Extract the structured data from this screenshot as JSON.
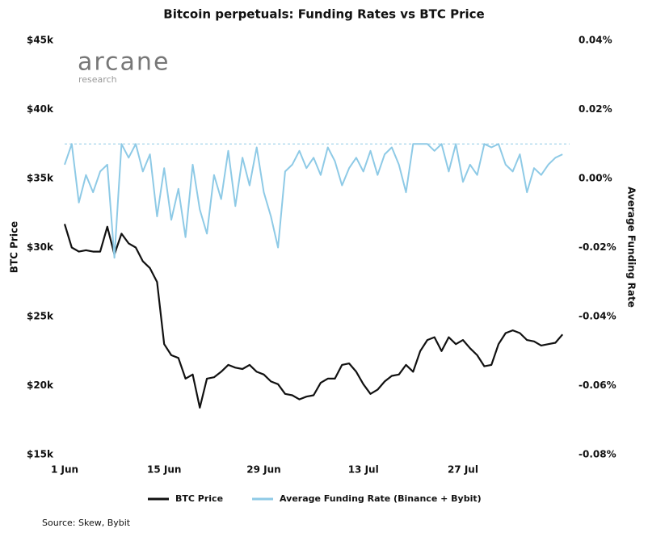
{
  "chart_data": {
    "type": "line",
    "title": "Bitcoin perpetuals: Funding Rates vs BTC Price",
    "logo": {
      "name": "arcane",
      "tagline": "research"
    },
    "source": "Source: Skew, Bybit",
    "ylabel": "BTC Price",
    "y2label": "Average Funding Rate",
    "x": [
      0,
      1,
      2,
      3,
      4,
      5,
      6,
      7,
      8,
      9,
      10,
      11,
      12,
      13,
      14,
      15,
      16,
      17,
      18,
      19,
      20,
      21,
      22,
      23,
      24,
      25,
      26,
      27,
      28,
      29,
      30,
      31,
      32,
      33,
      34,
      35,
      36,
      37,
      38,
      39,
      40,
      41,
      42,
      43,
      44,
      45,
      46,
      47,
      48,
      49,
      50,
      51,
      52,
      53,
      54,
      55,
      56,
      57,
      58,
      59,
      60,
      61,
      62,
      63,
      64,
      65,
      66,
      67,
      68,
      69,
      70
    ],
    "xlim": [
      0,
      71
    ],
    "xticks": [
      {
        "value": 0,
        "label": "1 Jun"
      },
      {
        "value": 14,
        "label": "15 Jun"
      },
      {
        "value": 28,
        "label": "29 Jun"
      },
      {
        "value": 42,
        "label": "13 Jul"
      },
      {
        "value": 56,
        "label": "27 Jul"
      }
    ],
    "ylim": [
      15000,
      45000
    ],
    "yticks": [
      {
        "value": 15000,
        "label": "$15k"
      },
      {
        "value": 20000,
        "label": "$20k"
      },
      {
        "value": 25000,
        "label": "$25k"
      },
      {
        "value": 30000,
        "label": "$30k"
      },
      {
        "value": 35000,
        "label": "$35k"
      },
      {
        "value": 40000,
        "label": "$40k"
      },
      {
        "value": 45000,
        "label": "$45k"
      }
    ],
    "y2lim": [
      -0.08,
      0.04
    ],
    "y2ticks": [
      {
        "value": -0.08,
        "label": "-0.08%"
      },
      {
        "value": -0.06,
        "label": "-0.06%"
      },
      {
        "value": -0.04,
        "label": "-0.04%"
      },
      {
        "value": -0.02,
        "label": "-0.02%"
      },
      {
        "value": 0,
        "label": "0.00%"
      },
      {
        "value": 0.02,
        "label": "0.02%"
      },
      {
        "value": 0.04,
        "label": "0.04%"
      }
    ],
    "hline": {
      "axis": "y2",
      "value": 0.01,
      "color": "#8ecae6"
    },
    "series": [
      {
        "name": "BTC Price",
        "color": "#111111",
        "axis": "y",
        "values": [
          31700,
          30000,
          29700,
          29800,
          29700,
          29700,
          31500,
          29500,
          31000,
          30300,
          30000,
          29000,
          28500,
          27500,
          23000,
          22200,
          22000,
          20500,
          20800,
          18400,
          20500,
          20600,
          21000,
          21500,
          21300,
          21200,
          21500,
          21000,
          20800,
          20300,
          20100,
          19400,
          19300,
          19000,
          19200,
          19300,
          20200,
          20500,
          20500,
          21500,
          21600,
          21000,
          20100,
          19400,
          19700,
          20300,
          20700,
          20800,
          21500,
          21000,
          22500,
          23300,
          23500,
          22500,
          23500,
          23000,
          23300,
          22700,
          22200,
          21400,
          21500,
          23000,
          23800,
          24000,
          23800,
          23300,
          23200,
          22900,
          23000,
          23100,
          23700
        ]
      },
      {
        "name": "Average Funding Rate (Binance + Bybit)",
        "color": "#8ecae6",
        "axis": "y2",
        "values": [
          0.004,
          0.01,
          -0.007,
          0.001,
          -0.004,
          0.002,
          0.004,
          -0.023,
          0.01,
          0.006,
          0.01,
          0.002,
          0.007,
          -0.011,
          0.003,
          -0.012,
          -0.003,
          -0.017,
          0.004,
          -0.009,
          -0.016,
          0.001,
          -0.006,
          0.008,
          -0.008,
          0.006,
          -0.002,
          0.009,
          -0.004,
          -0.011,
          -0.02,
          0.002,
          0.004,
          0.008,
          0.003,
          0.006,
          0.001,
          0.009,
          0.005,
          -0.002,
          0.003,
          0.006,
          0.002,
          0.008,
          0.001,
          0.007,
          0.009,
          0.004,
          -0.004,
          0.01,
          0.01,
          0.01,
          0.008,
          0.01,
          0.002,
          0.01,
          -0.001,
          0.004,
          0.001,
          0.01,
          0.009,
          0.01,
          0.004,
          0.002,
          0.007,
          -0.004,
          0.003,
          0.001,
          0.004,
          0.006,
          0.007
        ]
      }
    ]
  }
}
